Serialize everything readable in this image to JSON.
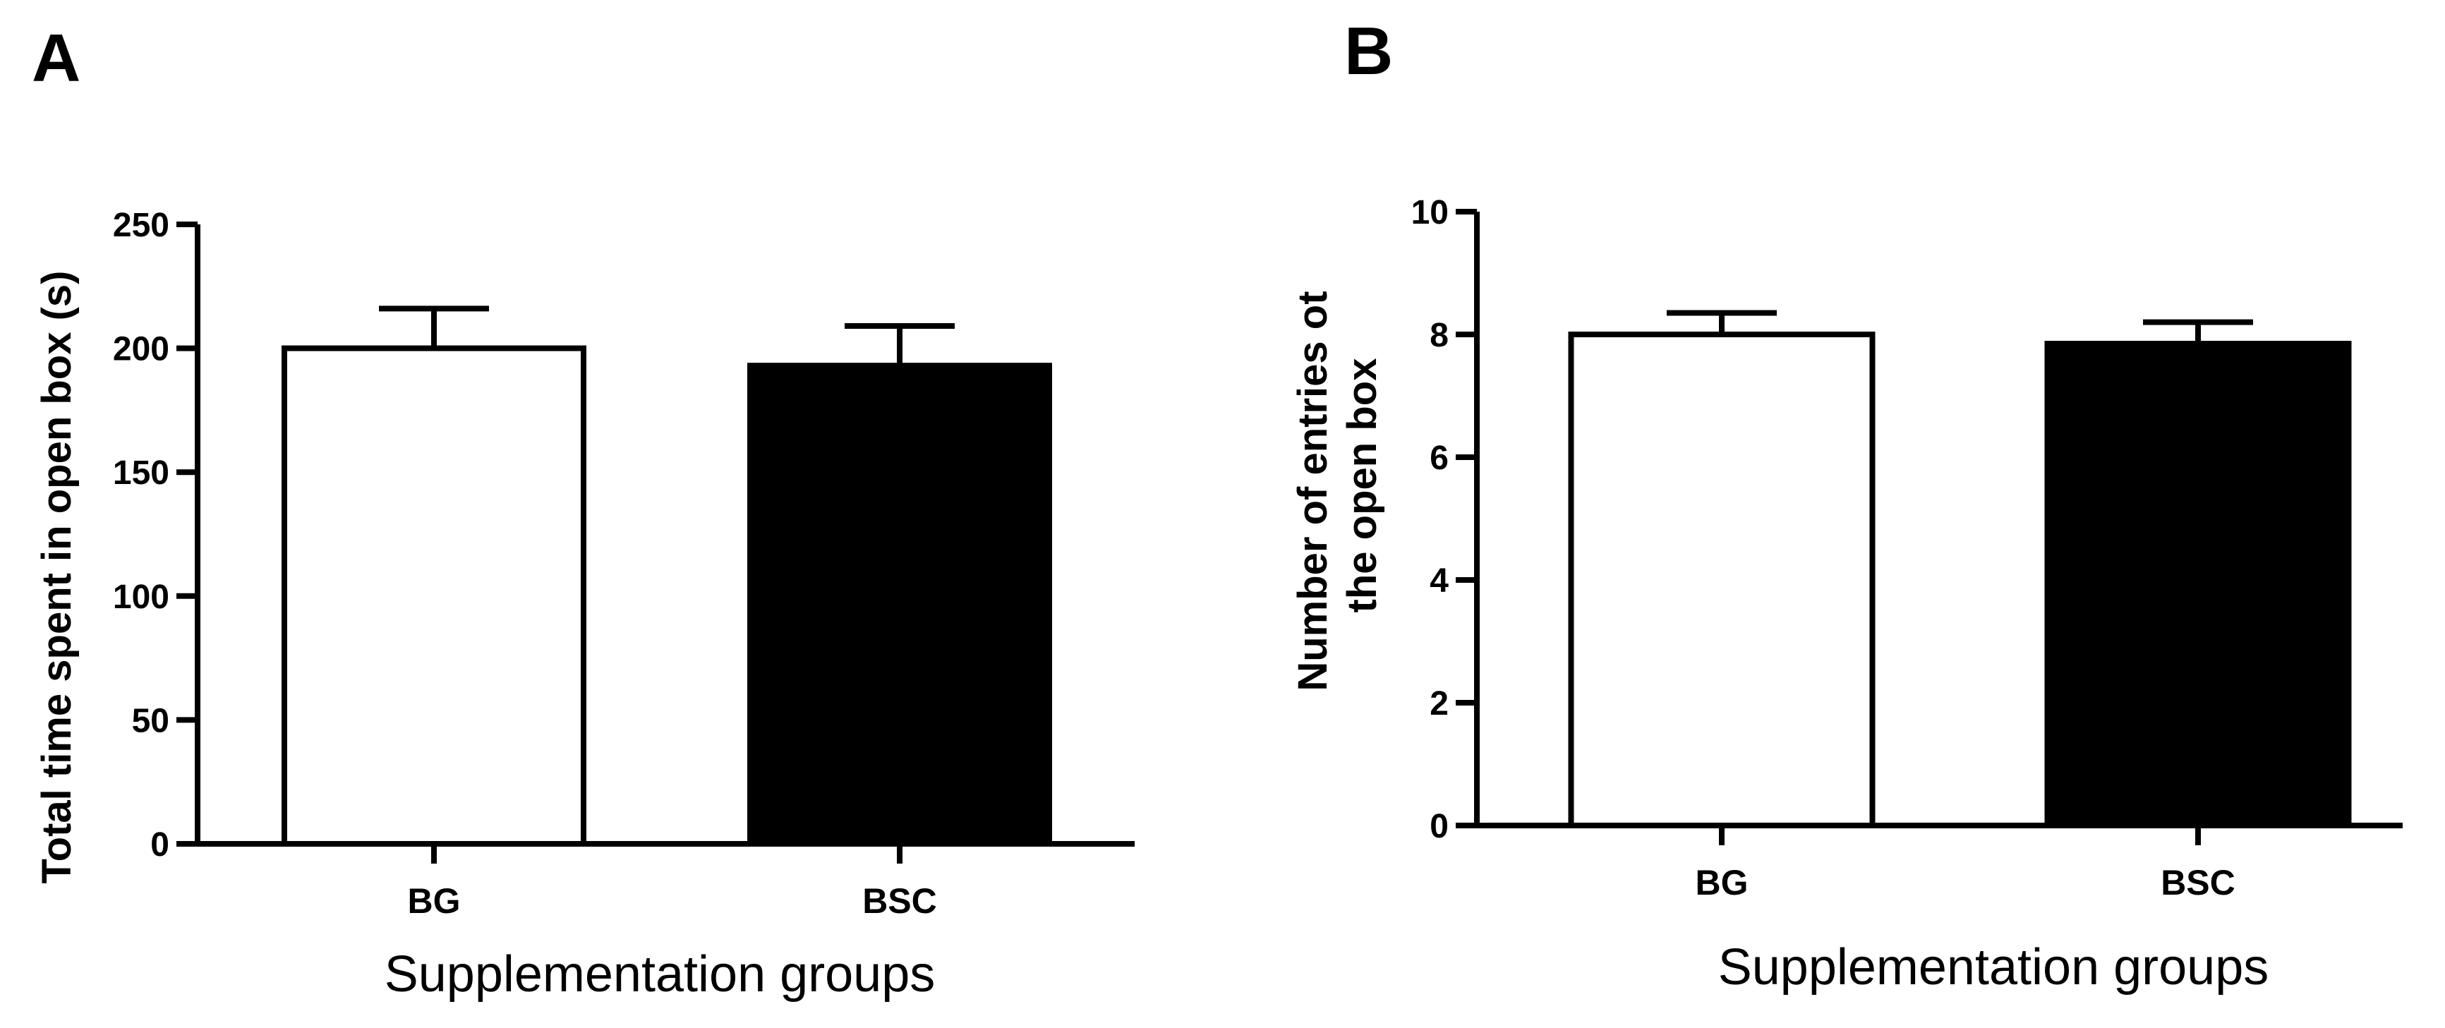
{
  "chart_data": [
    {
      "panel": "A",
      "type": "bar",
      "categories": [
        "BG",
        "BSC"
      ],
      "values": [
        200,
        193
      ],
      "errors": [
        16,
        16
      ],
      "bar_fills": [
        "#ffffff",
        "#000000"
      ],
      "xlabel": "Supplementation groups",
      "ylabel": "Total time spent in open box (s)",
      "ylim": [
        0,
        250
      ],
      "yticks": [
        0,
        50,
        100,
        150,
        200,
        250
      ],
      "grid": false
    },
    {
      "panel": "B",
      "type": "bar",
      "categories": [
        "BG",
        "BSC"
      ],
      "values": [
        8.0,
        7.85
      ],
      "errors": [
        0.35,
        0.35
      ],
      "bar_fills": [
        "#ffffff",
        "#000000"
      ],
      "xlabel": "Supplementation groups",
      "ylabel_lines": [
        "Number of entries ot",
        "the open box"
      ],
      "ylim": [
        0,
        10
      ],
      "yticks": [
        0,
        2,
        4,
        6,
        8,
        10
      ],
      "grid": false
    }
  ]
}
